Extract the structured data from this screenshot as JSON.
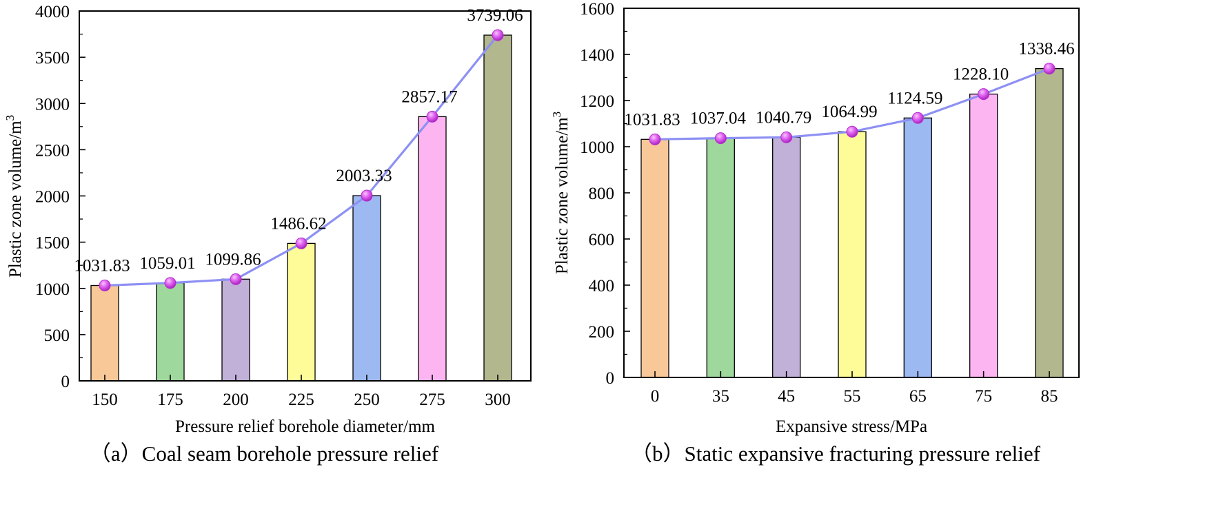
{
  "chart_data": [
    {
      "type": "bar",
      "caption": "（a）Coal seam borehole pressure relief",
      "xlabel": "Pressure relief borehole diameter/mm",
      "ylabel": "Plastic zone volume/m",
      "ylabel_sup": "3",
      "categories": [
        "150",
        "175",
        "200",
        "225",
        "250",
        "275",
        "300"
      ],
      "values": [
        1031.83,
        1059.01,
        1099.86,
        1486.62,
        2003.33,
        2857.17,
        3739.06
      ],
      "labels": [
        "1031.83",
        "1059.01",
        "1099.86",
        "1486.62",
        "2003.33",
        "2857.17",
        "3739.06"
      ],
      "ylim": [
        0,
        4000
      ],
      "yticks": [
        0,
        500,
        1000,
        1500,
        2000,
        2500,
        3000,
        3500,
        4000
      ],
      "overlay": "line with markers through bar tops"
    },
    {
      "type": "bar",
      "caption": "（b）Static expansive fracturing pressure relief",
      "xlabel": "Expansive stress/MPa",
      "ylabel": "Plastic zone volume/m",
      "ylabel_sup": "3",
      "categories": [
        "0",
        "35",
        "45",
        "55",
        "65",
        "75",
        "85"
      ],
      "values": [
        1031.83,
        1037.04,
        1040.79,
        1064.99,
        1124.59,
        1228.1,
        1338.46
      ],
      "labels": [
        "1031.83",
        "1037.04",
        "1040.79",
        "1064.99",
        "1124.59",
        "1228.10",
        "1338.46"
      ],
      "ylim": [
        0,
        1600
      ],
      "yticks": [
        0,
        200,
        400,
        600,
        800,
        1000,
        1200,
        1400,
        1600
      ],
      "overlay": "line with markers through bar tops"
    }
  ],
  "colors": {
    "bars": [
      "#f9c898",
      "#9fd89d",
      "#c1b0d8",
      "#fdfc99",
      "#9db9f1",
      "#fdb5f2",
      "#b2b78d"
    ],
    "line": "#8d90f3",
    "marker": "#d64be8"
  }
}
